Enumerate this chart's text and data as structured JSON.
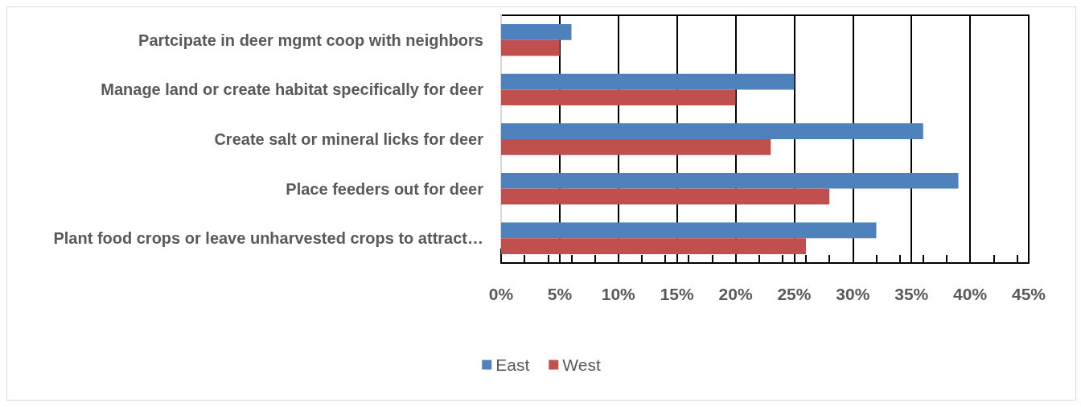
{
  "chart_data": {
    "type": "bar",
    "orientation": "horizontal",
    "categories": [
      "Partcipate in deer mgmt coop with neighbors",
      "Manage land or create habitat specifically for deer",
      "Create salt or mineral licks for deer",
      "Place feeders out for deer",
      "Plant food crops or leave unharvested crops to attract…"
    ],
    "series": [
      {
        "name": "East",
        "color": "#4f81bd",
        "values": [
          6,
          25,
          36,
          39,
          32
        ]
      },
      {
        "name": "West",
        "color": "#c0504d",
        "values": [
          5,
          20,
          23,
          28,
          26
        ]
      }
    ],
    "xlim": [
      0,
      45
    ],
    "xticks": [
      {
        "value": 0,
        "label": "0%"
      },
      {
        "value": 5,
        "label": "5%"
      },
      {
        "value": 10,
        "label": "10%"
      },
      {
        "value": 15,
        "label": "15%"
      },
      {
        "value": 20,
        "label": "20%"
      },
      {
        "value": 25,
        "label": "25%"
      },
      {
        "value": 30,
        "label": "30%"
      },
      {
        "value": 35,
        "label": "35%"
      },
      {
        "value": 40,
        "label": "40%"
      },
      {
        "value": 45,
        "label": "45%"
      }
    ],
    "grid": "x",
    "legend": "bottom"
  }
}
